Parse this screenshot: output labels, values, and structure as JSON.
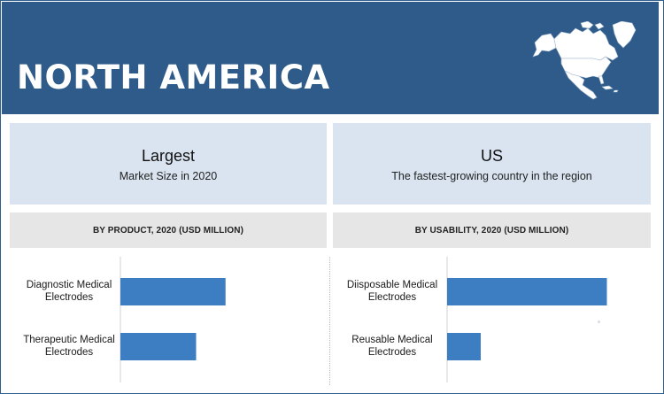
{
  "header": {
    "title": "NORTH AMERICA",
    "map_icon": "north-america-map-icon"
  },
  "cards": [
    {
      "title": "Largest",
      "subtitle": "Market Size in 2020"
    },
    {
      "title": "US",
      "subtitle": "The fastest-growing country in the region"
    }
  ],
  "chart_data": [
    {
      "type": "bar",
      "orientation": "horizontal",
      "title": "BY PRODUCT, 2020 (USD MILLION)",
      "categories": [
        [
          "Diagnostic Medical",
          "Electrodes"
        ],
        [
          "Therapeutic Medical",
          "Electrodes"
        ]
      ],
      "values": [
        125,
        90
      ],
      "xlim": [
        0,
        200
      ],
      "grid": false,
      "color": "#3d7ec2"
    },
    {
      "type": "bar",
      "orientation": "horizontal",
      "title": "BY USABILITY, 2020 (USD MILLION)",
      "categories": [
        [
          "Diisposable Medical",
          "Electrodes"
        ],
        [
          "Reusable Medical",
          "Electrodes"
        ]
      ],
      "values": [
        190,
        40
      ],
      "xlim": [
        0,
        200
      ],
      "grid": false,
      "color": "#3d7ec2"
    }
  ],
  "colors": {
    "header_bg": "#2e5b89",
    "card_bg": "#d9e4f0",
    "band_bg": "#e6e6e6",
    "bar": "#3d7ec2"
  }
}
